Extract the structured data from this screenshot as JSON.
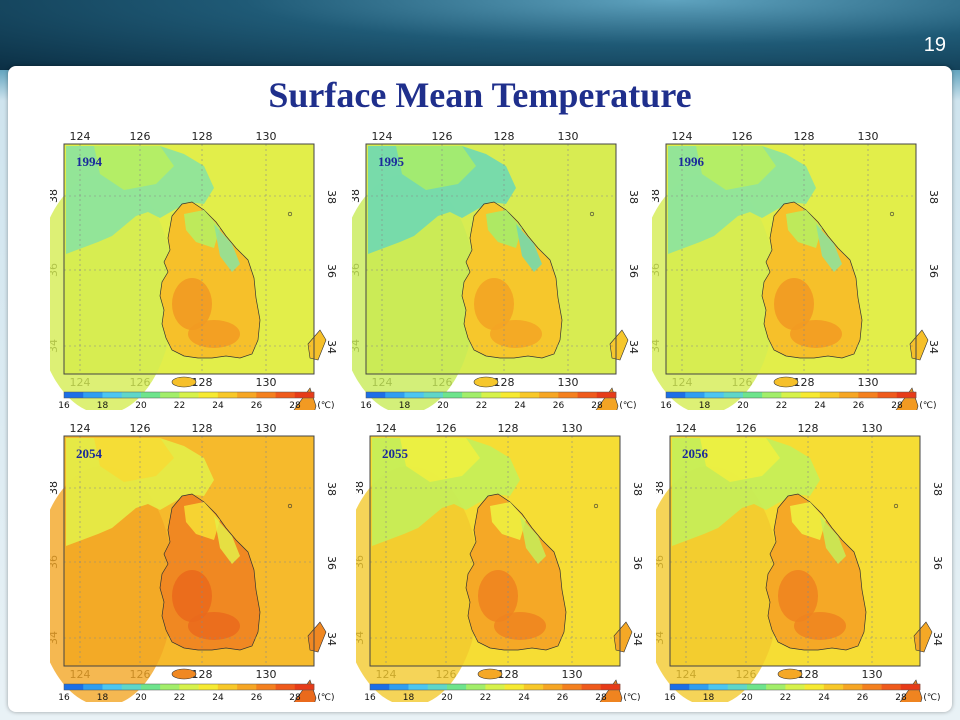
{
  "slide": {
    "number": "19",
    "title": "Surface Mean Temperature"
  },
  "colorbar": {
    "ticks": [
      "16",
      "18",
      "20",
      "22",
      "24",
      "26",
      "28"
    ],
    "unit": "(℃)",
    "colors": [
      "#1c6fe6",
      "#2f9ef0",
      "#4cc6f0",
      "#5fd6c8",
      "#6ee48c",
      "#a2ee6a",
      "#d6f24a",
      "#f6ea32",
      "#f8c829",
      "#f6a624",
      "#f4801f",
      "#ef5a1c",
      "#e73b18"
    ]
  },
  "axes": {
    "lon_ticks": [
      "124",
      "126",
      "128",
      "130"
    ],
    "lat_ticks": [
      "38",
      "36",
      "34"
    ]
  },
  "maps": [
    {
      "year": "1994",
      "theme": "cool"
    },
    {
      "year": "1995",
      "theme": "cooler"
    },
    {
      "year": "1996",
      "theme": "cool"
    },
    {
      "year": "2054",
      "theme": "hot"
    },
    {
      "year": "2055",
      "theme": "warm"
    },
    {
      "year": "2056",
      "theme": "warm"
    }
  ]
}
